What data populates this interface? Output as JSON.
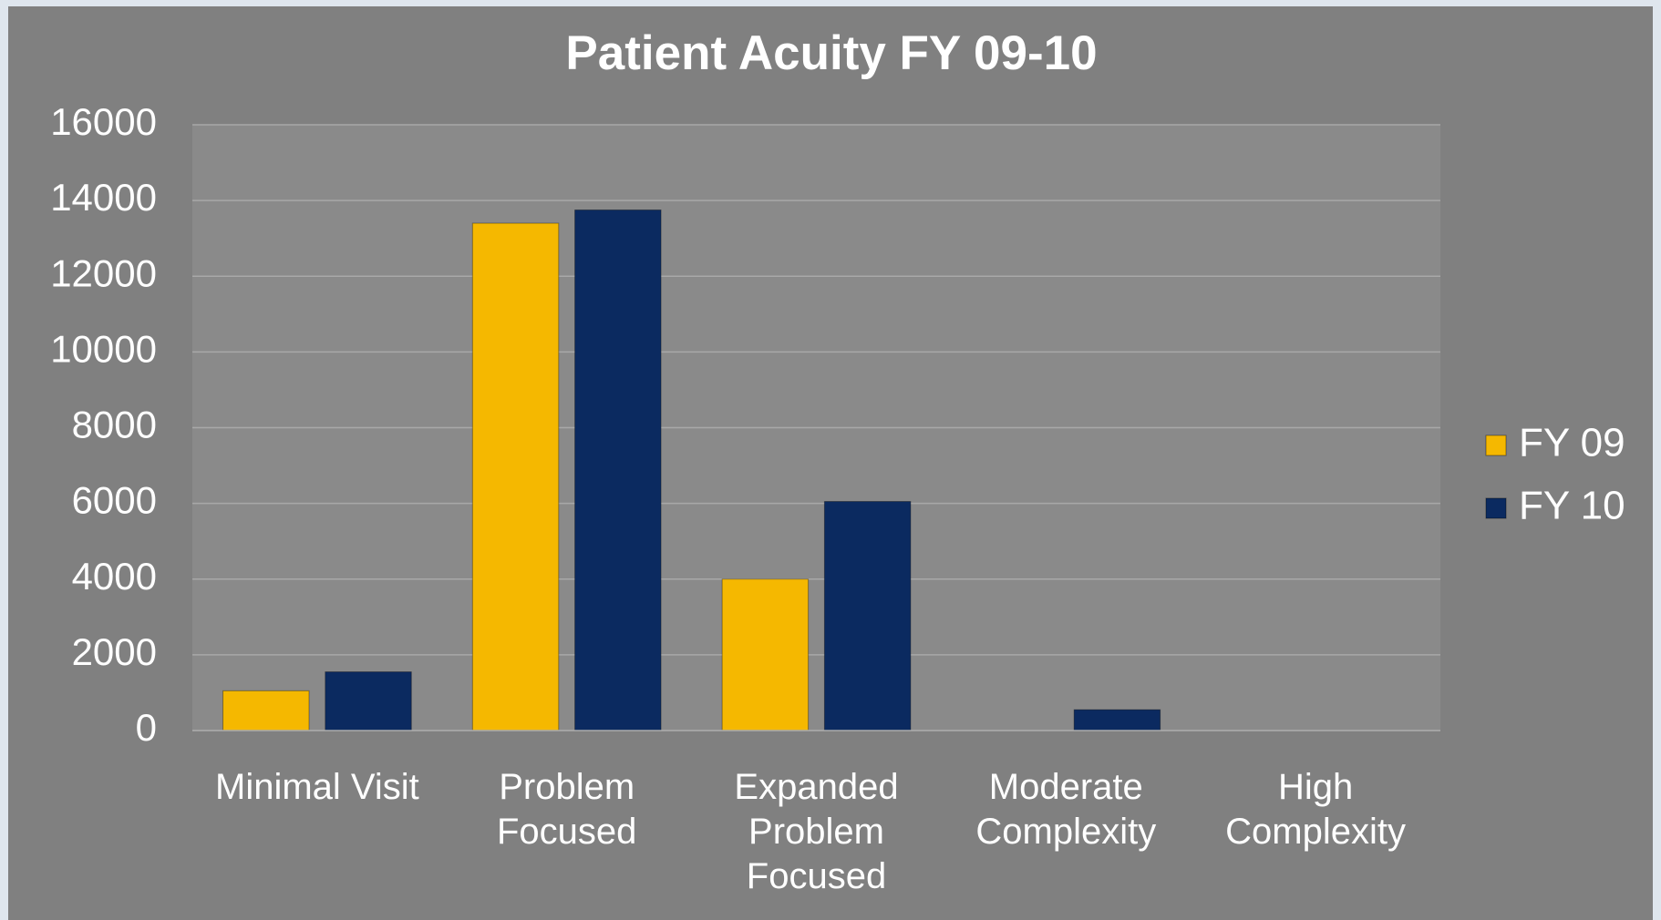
{
  "chart_data": {
    "type": "bar",
    "title": "Patient Acuity FY 09-10",
    "categories": [
      "Minimal Visit",
      "Problem Focused",
      "Expanded Problem Focused",
      "Moderate Complexity",
      "High Complexity"
    ],
    "series": [
      {
        "name": "FY 09",
        "color": "#f5b800",
        "values": [
          1050,
          13400,
          4000,
          0,
          0
        ]
      },
      {
        "name": "FY 10",
        "color": "#0b2a60",
        "values": [
          1550,
          13750,
          6050,
          550,
          0
        ]
      }
    ],
    "ylim": [
      0,
      16000
    ],
    "yticks": [
      0,
      2000,
      4000,
      6000,
      8000,
      10000,
      12000,
      14000,
      16000
    ],
    "grid": true,
    "legend": "right"
  }
}
